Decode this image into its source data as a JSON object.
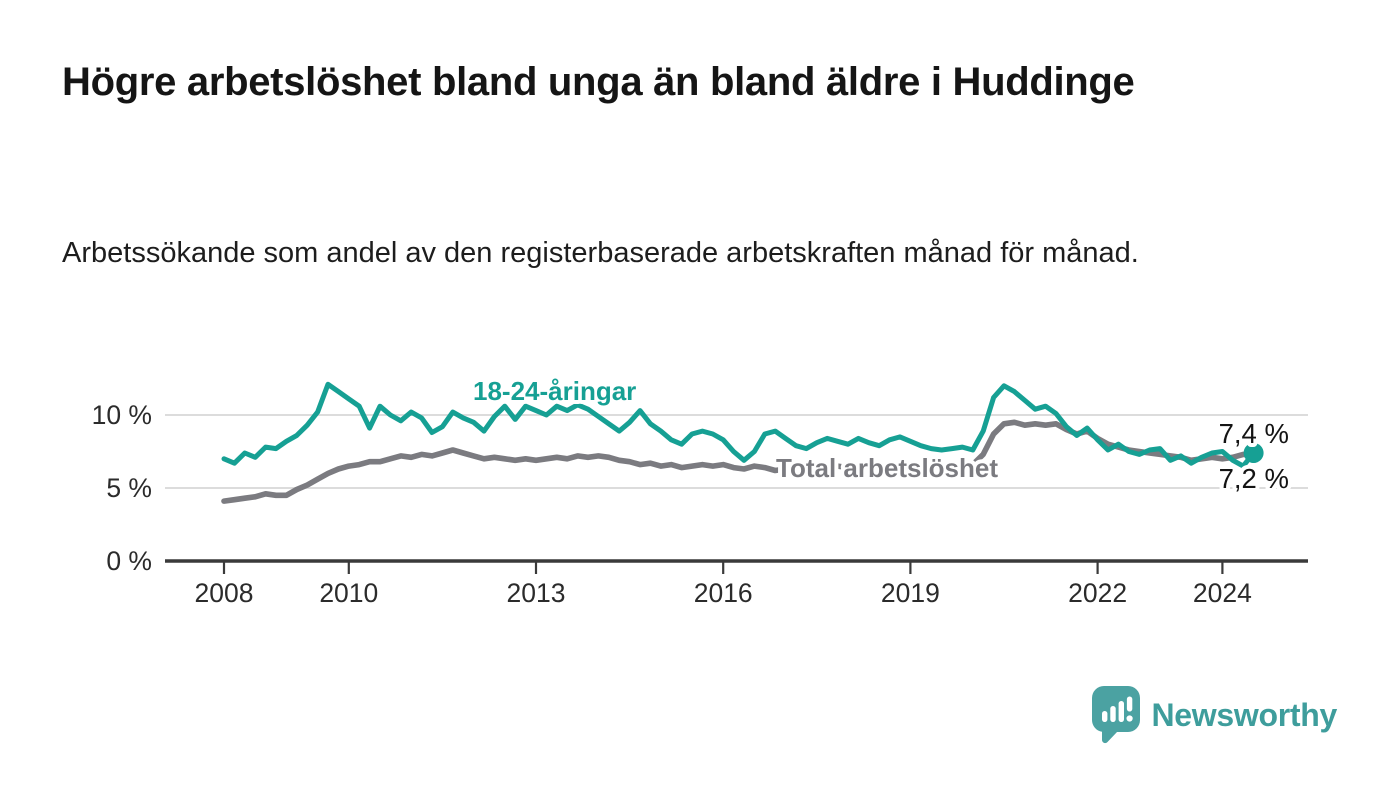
{
  "header": {
    "title": "Högre arbetslöshet bland unga än bland äldre i Huddinge",
    "subtitle": "Arbetssökande som andel av den registerbaserade arbetskraften månad för månad."
  },
  "chart_data": {
    "type": "line",
    "title": "Högre arbetslöshet bland unga än bland äldre i Huddinge",
    "subtitle": "Arbetssökande som andel av den registerbaserade arbetskraften månad för månad.",
    "unit": "%",
    "number_format": "sv-SE (decimal comma)",
    "x_ticks": [
      2008,
      2010,
      2013,
      2016,
      2019,
      2022,
      2024
    ],
    "y_ticks": [
      {
        "value": 0,
        "label": "0 %"
      },
      {
        "value": 5,
        "label": "5 %"
      },
      {
        "value": 10,
        "label": "10 %"
      }
    ],
    "x_range": [
      2008,
      2025.3
    ],
    "ylim": [
      0,
      12.7
    ],
    "grid": "horizontal gridlines at 5 % and 10 %",
    "legend": "inline labels next to each line, plus end-value labels",
    "x_start": 2008.0,
    "x_step_months": 2,
    "x_end": 2024.5,
    "series": [
      {
        "name": "Total arbetslöshet",
        "color": "#7b7b80",
        "end_label": "7,2 %",
        "end_value": 7.2,
        "values": [
          4.1,
          4.2,
          4.3,
          4.4,
          4.6,
          4.5,
          4.5,
          4.9,
          5.2,
          5.6,
          6.0,
          6.3,
          6.5,
          6.6,
          6.8,
          6.8,
          7.0,
          7.2,
          7.1,
          7.3,
          7.2,
          7.4,
          7.6,
          7.4,
          7.2,
          7.0,
          7.1,
          7.0,
          6.9,
          7.0,
          6.9,
          7.0,
          7.1,
          7.0,
          7.2,
          7.1,
          7.2,
          7.1,
          6.9,
          6.8,
          6.6,
          6.7,
          6.5,
          6.6,
          6.4,
          6.5,
          6.6,
          6.5,
          6.6,
          6.4,
          6.3,
          6.5,
          6.4,
          6.2,
          6.3,
          6.4,
          6.3,
          6.5,
          6.4,
          6.5,
          6.4,
          6.5,
          6.4,
          6.3,
          6.4,
          6.5,
          6.4,
          6.5,
          6.6,
          6.5,
          6.6,
          6.6,
          6.6,
          7.3,
          8.7,
          9.4,
          9.5,
          9.3,
          9.4,
          9.3,
          9.4,
          9.0,
          8.7,
          8.9,
          8.4,
          8.0,
          7.8,
          7.6,
          7.5,
          7.4,
          7.3,
          7.2,
          7.1,
          6.9,
          7.0,
          7.1,
          7.0,
          7.1,
          7.3,
          7.2
        ]
      },
      {
        "name": "18-24-åringar",
        "color": "#16a094",
        "end_label": "7,4 %",
        "end_value": 7.4,
        "values": [
          7.0,
          6.7,
          7.4,
          7.1,
          7.8,
          7.7,
          8.2,
          8.6,
          9.3,
          10.2,
          12.1,
          11.6,
          11.1,
          10.6,
          9.1,
          10.6,
          10.0,
          9.6,
          10.2,
          9.8,
          8.8,
          9.2,
          10.2,
          9.8,
          9.5,
          8.9,
          9.9,
          10.6,
          9.7,
          10.6,
          10.3,
          10.0,
          10.6,
          10.3,
          10.7,
          10.4,
          9.9,
          9.4,
          8.9,
          9.5,
          10.3,
          9.4,
          8.9,
          8.3,
          8.0,
          8.7,
          8.9,
          8.7,
          8.3,
          7.5,
          6.9,
          7.5,
          8.7,
          8.9,
          8.4,
          7.9,
          7.7,
          8.1,
          8.4,
          8.2,
          8.0,
          8.4,
          8.1,
          7.9,
          8.3,
          8.5,
          8.2,
          7.9,
          7.7,
          7.6,
          7.7,
          7.8,
          7.6,
          8.9,
          11.2,
          12.0,
          11.6,
          11.0,
          10.4,
          10.6,
          10.1,
          9.2,
          8.6,
          9.1,
          8.3,
          7.6,
          8.0,
          7.5,
          7.3,
          7.6,
          7.7,
          6.9,
          7.2,
          6.7,
          7.1,
          7.4,
          7.5,
          6.9,
          6.5,
          7.4
        ]
      }
    ],
    "colors": {
      "youth_line": "#16a094",
      "total_line": "#7b7b80",
      "axis": "#3a3a3a",
      "gridline": "#dcdcdc",
      "tick_text": "#2b2b2b",
      "end_label_text": "#141414"
    }
  },
  "footer": {
    "brand": "Newsworthy",
    "brand_color": "#3e9d9c",
    "logo_icon": "speech-bubble-bar-chart-icon",
    "logo_fill": "#4ba2a2"
  }
}
